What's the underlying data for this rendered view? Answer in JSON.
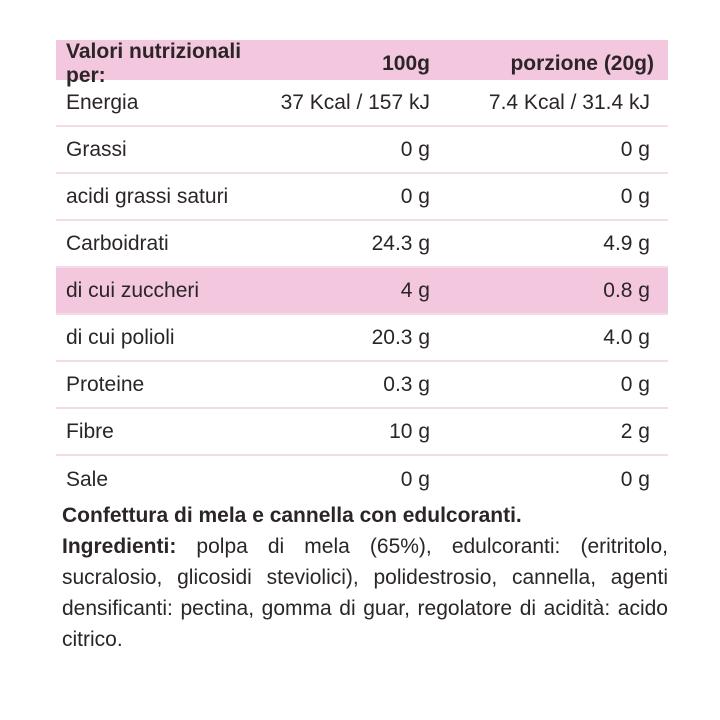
{
  "colors": {
    "accent_pink": "#f3c7dd",
    "separator_pink": "#f2dcea",
    "text": "#2b2528"
  },
  "table": {
    "header": {
      "label": "Valori nutrizionali per:",
      "col_100g": "100g",
      "col_portion": "porzione (20g)"
    },
    "rows": [
      {
        "label": "Energia",
        "per_100g": "37 Kcal / 157 kJ",
        "per_portion": "7.4 Kcal / 31.4 kJ",
        "highlight": false
      },
      {
        "label": "Grassi",
        "per_100g": "0 g",
        "per_portion": "0 g",
        "highlight": false
      },
      {
        "label": "acidi grassi saturi",
        "per_100g": "0 g",
        "per_portion": "0 g",
        "highlight": false
      },
      {
        "label": "Carboidrati",
        "per_100g": "24.3 g",
        "per_portion": "4.9 g",
        "highlight": false
      },
      {
        "label": "di cui zuccheri",
        "per_100g": "4 g",
        "per_portion": "0.8 g",
        "highlight": true
      },
      {
        "label": "di cui polioli",
        "per_100g": "20.3 g",
        "per_portion": "4.0 g",
        "highlight": false
      },
      {
        "label": "Proteine",
        "per_100g": "0.3 g",
        "per_portion": "0 g",
        "highlight": false
      },
      {
        "label": "Fibre",
        "per_100g": "10 g",
        "per_portion": "2 g",
        "highlight": false
      },
      {
        "label": "Sale",
        "per_100g": "0 g",
        "per_portion": "0 g",
        "highlight": false
      }
    ]
  },
  "description": {
    "product": "Confettura di mela e cannella con edulcoranti.",
    "ingredients_label": "Ingredienti:",
    "ingredients_text": " polpa di mela (65%), edulcoranti: (eritritolo, sucralosio, glicosidi steviolici), polidestrosio, cannella, agenti densificanti: pectina, gomma di guar, regolatore di acidità: acido citrico."
  }
}
